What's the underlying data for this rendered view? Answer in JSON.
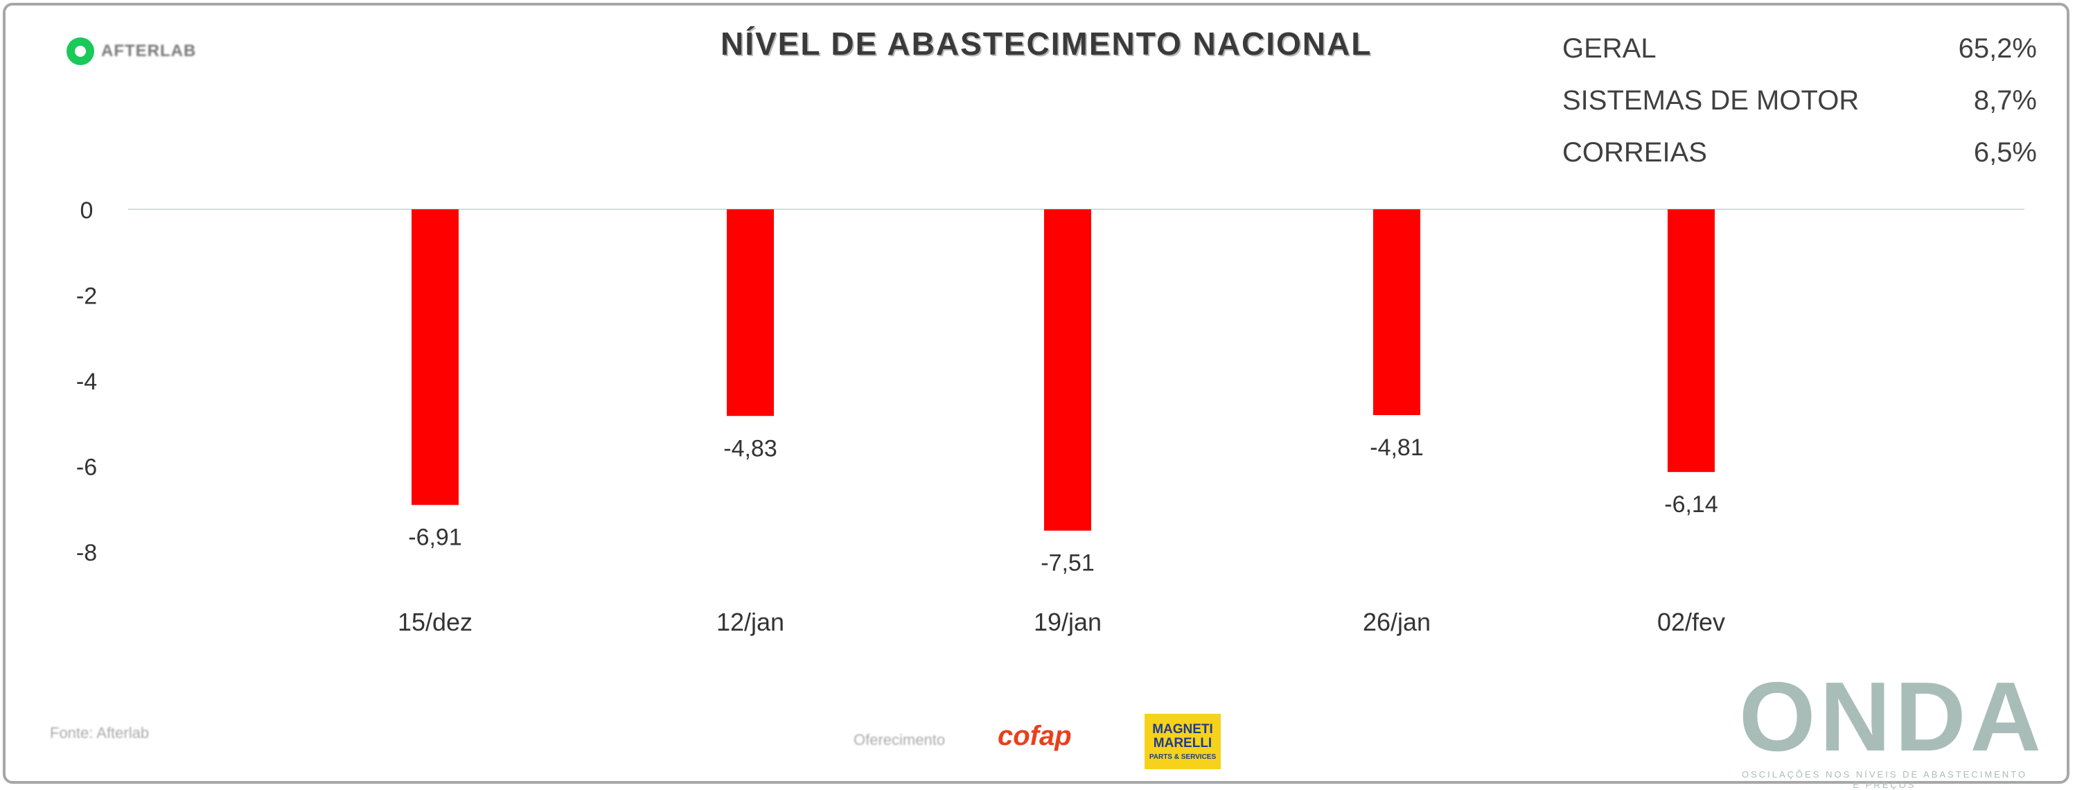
{
  "brand": {
    "name": "AFTERLAB"
  },
  "title": "NÍVEL DE ABASTECIMENTO NACIONAL",
  "summary": [
    {
      "label": "GERAL",
      "value": "65,2%"
    },
    {
      "label": "SISTEMAS DE MOTOR",
      "value": "8,7%"
    },
    {
      "label": "CORREIAS",
      "value": "6,5%"
    }
  ],
  "chart_data": {
    "type": "bar",
    "categories": [
      "15/dez",
      "12/jan",
      "19/jan",
      "26/jan",
      "02/fev"
    ],
    "values": [
      -6.91,
      -4.83,
      -7.51,
      -4.81,
      -6.14
    ],
    "value_labels": [
      "-6,91",
      "-4,83",
      "-7,51",
      "-4,81",
      "-6,14"
    ],
    "yticks": [
      0,
      -2,
      -4,
      -6,
      -8
    ],
    "ylim": [
      -8,
      0
    ],
    "bar_color": "#ff0000",
    "grid": false
  },
  "footer": {
    "source": "Fonte: Afterlab",
    "sponsor_label": "Oferecimento",
    "cofap": "cofap",
    "magneti_name": "MAGNETI MARELLI",
    "magneti_sub": "PARTS & SERVICES",
    "onda": "ONDA",
    "onda_tagline": "OSCILAÇÕES NOS NÍVEIS DE ABASTECIMENTO E PREÇOS"
  }
}
